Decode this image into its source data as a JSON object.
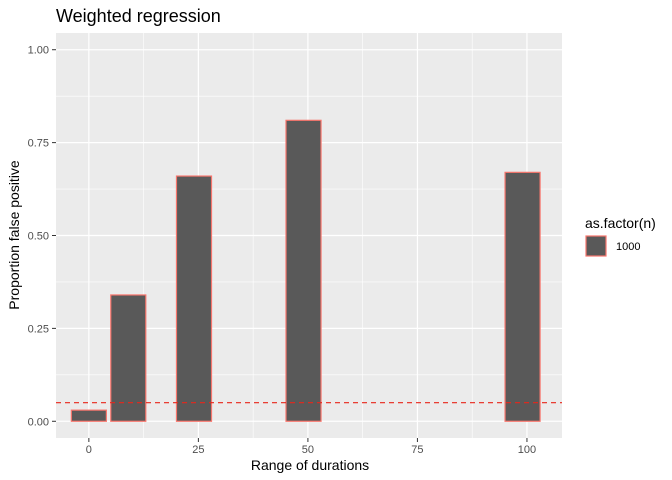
{
  "chart_data": {
    "type": "bar",
    "title": "Weighted regression",
    "xlabel": "Range of durations",
    "ylabel": "Proportion false positive",
    "x_ticks": [
      0,
      25,
      50,
      75,
      100
    ],
    "x_tick_labels": [
      "0",
      "25",
      "50",
      "75",
      "100"
    ],
    "y_ticks": [
      0,
      0.25,
      0.5,
      0.75,
      1.0
    ],
    "y_tick_labels": [
      "0.00",
      "0.25",
      "0.50",
      "0.75",
      "1.00"
    ],
    "xlim": [
      -7.5,
      108
    ],
    "ylim": [
      0,
      1.0
    ],
    "series": [
      {
        "name": "1000",
        "x": [
          0,
          9,
          24,
          49,
          99
        ],
        "values": [
          0.03,
          0.34,
          0.66,
          0.81,
          0.67
        ]
      }
    ],
    "bar_width": 8,
    "reference_line": {
      "y": 0.05,
      "style": "dashed",
      "color": "#e8261b"
    },
    "legend": {
      "title": "as.factor(n)",
      "position": "right"
    },
    "colors": {
      "bar_fill": "#595959",
      "bar_outline": "#f8766d",
      "panel_background": "#ebebeb",
      "grid": "#ffffff"
    },
    "grid": true
  }
}
